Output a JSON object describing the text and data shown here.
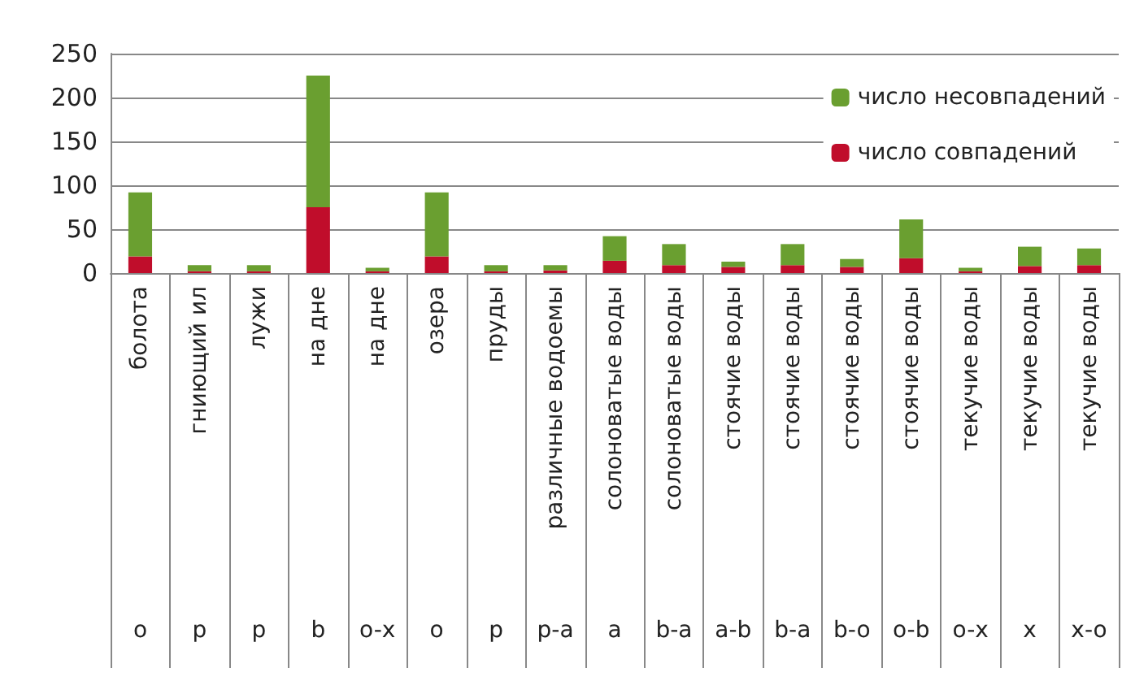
{
  "chart_data": {
    "type": "bar",
    "stacked": true,
    "categories": [
      "болота\no",
      "гниющий ил\np",
      "лужи\np",
      "на дне\nb",
      "на дне\no-x",
      "озера\no",
      "пруды\np",
      "различные водоемы\np-a",
      "солоноватые воды\na",
      "солоноватые воды\nb-a",
      "стоячие воды\na-b",
      "стоячие воды\nb-a",
      "стоячие воды\nb-o",
      "стоячие воды\no-b",
      "текучие воды\no-x",
      "текучие воды\nx",
      "текучие воды\nx-o"
    ],
    "series": [
      {
        "name": "число совпадений",
        "color": "#c00d2b",
        "values": [
          19,
          2,
          2,
          75,
          2,
          19,
          2,
          3,
          14,
          9,
          7,
          9,
          7,
          17,
          2,
          8,
          9
        ]
      },
      {
        "name": "число несовпадений",
        "color": "#6a9f30",
        "values": [
          73,
          7,
          7,
          150,
          4,
          73,
          7,
          6,
          28,
          24,
          6,
          24,
          9,
          44,
          4,
          22,
          19
        ]
      }
    ],
    "ylim": [
      0,
      250
    ],
    "yticks": [
      0,
      50,
      100,
      150,
      200,
      250
    ],
    "grid": "y",
    "legend": "top right"
  }
}
